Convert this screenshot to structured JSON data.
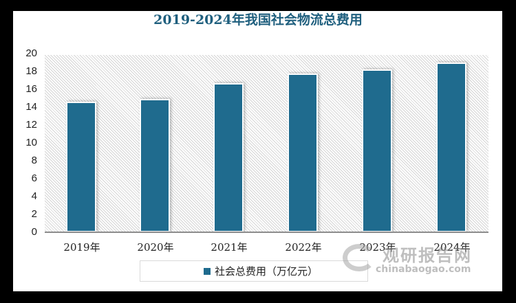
{
  "title": "2019-2024年我国社会物流总费用",
  "chart_data": {
    "type": "bar",
    "title": "2019-2024年我国社会物流总费用",
    "categories": [
      "2019年",
      "2020年",
      "2021年",
      "2022年",
      "2023年",
      "2024年"
    ],
    "series": [
      {
        "name": "社会总费用（万亿元）",
        "values": [
          14.6,
          14.9,
          16.7,
          17.8,
          18.2,
          19.0
        ],
        "color": "#1f6b8e"
      }
    ],
    "xlabel": "",
    "ylabel": "",
    "ylim": [
      0,
      20
    ],
    "yticks": [
      0,
      2,
      4,
      6,
      8,
      10,
      12,
      14,
      16,
      18,
      20
    ],
    "grid": false,
    "legend_position": "bottom"
  },
  "yaxis": {
    "ticks": [
      "20",
      "18",
      "16",
      "14",
      "12",
      "10",
      "8",
      "6",
      "4",
      "2",
      "0"
    ]
  },
  "xaxis": {
    "labels": [
      "2019年",
      "2020年",
      "2021年",
      "2022年",
      "2023年",
      "2024年"
    ]
  },
  "legend": {
    "label": "社会总费用（万亿元）"
  },
  "watermark": {
    "cn": "观研报告网",
    "en": "chinabaogao.com"
  }
}
